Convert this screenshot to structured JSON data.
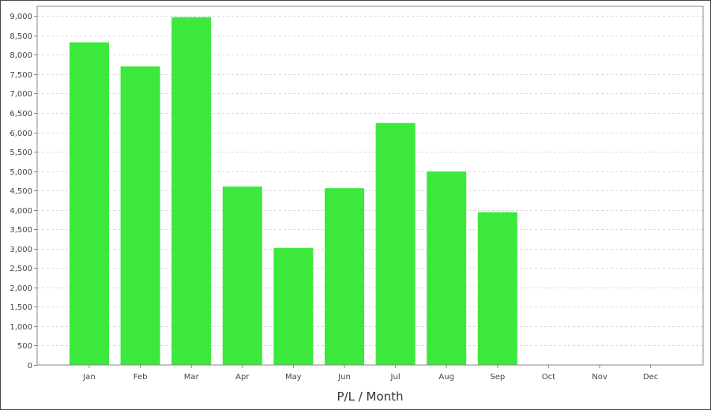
{
  "chart_data": {
    "type": "bar",
    "title": "",
    "xlabel": "P/L / Month",
    "ylabel": "",
    "categories": [
      "Jan",
      "Feb",
      "Mar",
      "Apr",
      "May",
      "Jun",
      "Jul",
      "Aug",
      "Sep",
      "Oct",
      "Nov",
      "Dec"
    ],
    "values": [
      8320,
      7700,
      8970,
      4600,
      3020,
      4560,
      6240,
      4990,
      3940,
      null,
      null,
      null
    ],
    "ylim": [
      0,
      9250
    ],
    "yticks": [
      0,
      500,
      1000,
      1500,
      2000,
      2500,
      3000,
      3500,
      4000,
      4500,
      5000,
      5500,
      6000,
      6500,
      7000,
      7500,
      8000,
      8500,
      9000
    ],
    "ytick_labels": [
      "0",
      "500",
      "1,000",
      "1,500",
      "2,000",
      "2,500",
      "3,000",
      "3,500",
      "4,000",
      "4,500",
      "5,000",
      "5,500",
      "6,000",
      "6,500",
      "7,000",
      "7,500",
      "8,000",
      "8,500",
      "9,000"
    ],
    "grid": true,
    "legend": "none",
    "bar_color": "#3de83d",
    "grid_color": "#d9d9d9",
    "axis_color": "#888888"
  }
}
